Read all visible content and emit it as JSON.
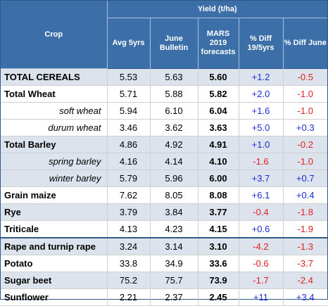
{
  "header": {
    "crop": "Crop",
    "yield_group": "Yield (t/ha)",
    "columns": [
      "Avg 5yrs",
      "June Bulletin",
      "MARS 2019 forecasts",
      "% Diff 19/5yrs",
      "% Diff June"
    ]
  },
  "rows": [
    {
      "crop": "TOTAL CEREALS",
      "avg": "5.53",
      "june": "5.63",
      "mars": "5.60",
      "diff5": "+1.2",
      "diffjune": "-0.5",
      "sub": false,
      "shade": true
    },
    {
      "crop": "Total Wheat",
      "avg": "5.71",
      "june": "5.88",
      "mars": "5.82",
      "diff5": "+2.0",
      "diffjune": "-1.0",
      "sub": false,
      "shade": false
    },
    {
      "crop": "soft wheat",
      "avg": "5.94",
      "june": "6.10",
      "mars": "6.04",
      "diff5": "+1.6",
      "diffjune": "-1.0",
      "sub": true,
      "shade": false
    },
    {
      "crop": "durum wheat",
      "avg": "3.46",
      "june": "3.62",
      "mars": "3.63",
      "diff5": "+5.0",
      "diffjune": "+0.3",
      "sub": true,
      "shade": false
    },
    {
      "crop": "Total Barley",
      "avg": "4.86",
      "june": "4.92",
      "mars": "4.91",
      "diff5": "+1.0",
      "diffjune": "-0.2",
      "sub": false,
      "shade": true
    },
    {
      "crop": "spring barley",
      "avg": "4.16",
      "june": "4.14",
      "mars": "4.10",
      "diff5": "-1.6",
      "diffjune": "-1.0",
      "sub": true,
      "shade": true
    },
    {
      "crop": "winter barley",
      "avg": "5.79",
      "june": "5.96",
      "mars": "6.00",
      "diff5": "+3.7",
      "diffjune": "+0.7",
      "sub": true,
      "shade": true
    },
    {
      "crop": "Grain maize",
      "avg": "7.62",
      "june": "8.05",
      "mars": "8.08",
      "diff5": "+6.1",
      "diffjune": "+0.4",
      "sub": false,
      "shade": false
    },
    {
      "crop": "Rye",
      "avg": "3.79",
      "june": "3.84",
      "mars": "3.77",
      "diff5": "-0.4",
      "diffjune": "-1.8",
      "sub": false,
      "shade": true
    },
    {
      "crop": "Triticale",
      "avg": "4.13",
      "june": "4.23",
      "mars": "4.15",
      "diff5": "+0.6",
      "diffjune": "-1.9",
      "sub": false,
      "shade": false
    },
    {
      "crop": "Rape and turnip rape",
      "avg": "3.24",
      "june": "3.14",
      "mars": "3.10",
      "diff5": "-4.2",
      "diffjune": "-1.3",
      "sub": false,
      "shade": true
    },
    {
      "crop": "Potato",
      "avg": "33.8",
      "june": "34.9",
      "mars": "33.6",
      "diff5": "-0.6",
      "diffjune": "-3.7",
      "sub": false,
      "shade": false
    },
    {
      "crop": "Sugar beet",
      "avg": "75.2",
      "june": "75.7",
      "mars": "73.9",
      "diff5": "-1.7",
      "diffjune": "-2.4",
      "sub": false,
      "shade": true
    },
    {
      "crop": "Sunflower",
      "avg": "2.21",
      "june": "2.37",
      "mars": "2.45",
      "diff5": "+11",
      "diffjune": "+3.4",
      "sub": false,
      "shade": false
    }
  ],
  "colors": {
    "header_bg": "#3c6fa8",
    "shade_bg": "#dde3ec",
    "positive": "#1a2fd6",
    "negative": "#e02020"
  }
}
